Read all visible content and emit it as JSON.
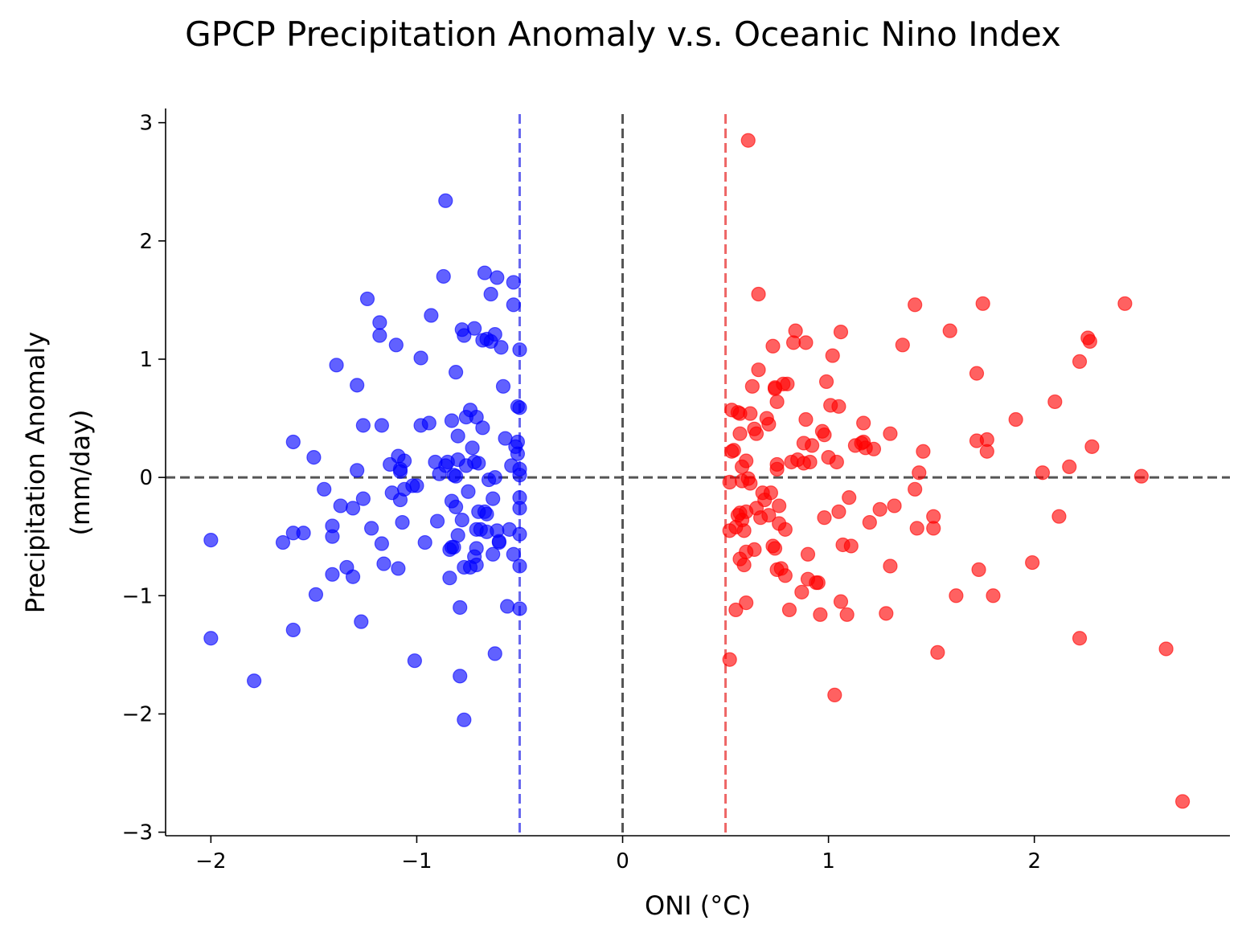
{
  "chart_data": {
    "type": "scatter",
    "title": "GPCP Precipitation Anomaly v.s. Oceanic Nino Index",
    "xlabel": "ONI (°C)",
    "ylabel_lines": [
      "Precipitation Anomaly",
      "(mm/day)"
    ],
    "xlim": [
      -2.22,
      2.95
    ],
    "ylim": [
      -3.03,
      3.12
    ],
    "xticks": [
      -2,
      -1,
      0,
      1,
      2
    ],
    "yticks": [
      -3,
      -2,
      -1,
      0,
      1,
      2,
      3
    ],
    "grid": false,
    "reference_lines": [
      {
        "orientation": "vertical",
        "value": -0.5,
        "color": "#6666ee",
        "style": "dashed"
      },
      {
        "orientation": "vertical",
        "value": 0,
        "color": "#555555",
        "style": "dashed"
      },
      {
        "orientation": "vertical",
        "value": 0.5,
        "color": "#ee6666",
        "style": "dashed"
      },
      {
        "orientation": "horizontal",
        "value": 0,
        "color": "#555555",
        "style": "dashed"
      }
    ],
    "series": [
      {
        "color": "#0000ff",
        "points": [
          [
            -2.0,
            -0.53
          ],
          [
            -2.0,
            -1.36
          ],
          [
            -1.79,
            -1.72
          ],
          [
            -1.65,
            -0.55
          ],
          [
            -1.6,
            0.3
          ],
          [
            -1.6,
            -0.47
          ],
          [
            -1.6,
            -1.29
          ],
          [
            -1.55,
            -0.47
          ],
          [
            -1.5,
            0.17
          ],
          [
            -1.49,
            -0.99
          ],
          [
            -1.45,
            -0.1
          ],
          [
            -1.41,
            -0.41
          ],
          [
            -1.41,
            -0.5
          ],
          [
            -1.41,
            -0.82
          ],
          [
            -1.39,
            0.95
          ],
          [
            -1.37,
            -0.24
          ],
          [
            -1.34,
            -0.76
          ],
          [
            -1.31,
            -0.26
          ],
          [
            -1.31,
            -0.84
          ],
          [
            -1.29,
            0.06
          ],
          [
            -1.29,
            0.78
          ],
          [
            -1.27,
            -1.22
          ],
          [
            -1.26,
            0.44
          ],
          [
            -1.26,
            -0.18
          ],
          [
            -1.24,
            1.51
          ],
          [
            -1.22,
            -0.43
          ],
          [
            -1.18,
            1.31
          ],
          [
            -1.18,
            1.2
          ],
          [
            -1.17,
            0.44
          ],
          [
            -1.17,
            -0.56
          ],
          [
            -1.16,
            -0.73
          ],
          [
            -1.13,
            0.11
          ],
          [
            -1.12,
            -0.13
          ],
          [
            -1.1,
            1.12
          ],
          [
            -1.09,
            0.18
          ],
          [
            -1.09,
            -0.77
          ],
          [
            -1.08,
            0.05
          ],
          [
            -1.08,
            -0.19
          ],
          [
            -1.08,
            0.07
          ],
          [
            -1.07,
            -0.38
          ],
          [
            -1.06,
            -0.1
          ],
          [
            -1.06,
            0.14
          ],
          [
            -1.02,
            -0.07
          ],
          [
            -1.01,
            -1.55
          ],
          [
            -1.0,
            -0.07
          ],
          [
            -0.98,
            0.44
          ],
          [
            -0.98,
            1.01
          ],
          [
            -0.96,
            -0.55
          ],
          [
            -0.94,
            0.46
          ],
          [
            -0.93,
            1.37
          ],
          [
            -0.91,
            0.13
          ],
          [
            -0.9,
            -0.37
          ],
          [
            -0.89,
            0.03
          ],
          [
            -0.87,
            1.7
          ],
          [
            -0.86,
            2.34
          ],
          [
            -0.86,
            0.1
          ],
          [
            -0.85,
            0.13
          ],
          [
            -0.84,
            -0.85
          ],
          [
            -0.84,
            -0.61
          ],
          [
            -0.83,
            0.48
          ],
          [
            -0.83,
            -0.59
          ],
          [
            -0.83,
            -0.2
          ],
          [
            -0.82,
            -0.59
          ],
          [
            -0.82,
            0.02
          ],
          [
            -0.81,
            0.89
          ],
          [
            -0.81,
            0.01
          ],
          [
            -0.81,
            -0.25
          ],
          [
            -0.8,
            0.35
          ],
          [
            -0.8,
            0.15
          ],
          [
            -0.8,
            -0.49
          ],
          [
            -0.79,
            -1.1
          ],
          [
            -0.79,
            -1.68
          ],
          [
            -0.78,
            1.25
          ],
          [
            -0.78,
            -0.36
          ],
          [
            -0.77,
            1.2
          ],
          [
            -0.77,
            -2.05
          ],
          [
            -0.77,
            -0.76
          ],
          [
            -0.76,
            0.51
          ],
          [
            -0.76,
            0.1
          ],
          [
            -0.75,
            -0.12
          ],
          [
            -0.74,
            -0.76
          ],
          [
            -0.74,
            0.57
          ],
          [
            -0.73,
            0.25
          ],
          [
            -0.72,
            1.26
          ],
          [
            -0.72,
            -0.67
          ],
          [
            -0.72,
            0.13
          ],
          [
            -0.71,
            0.51
          ],
          [
            -0.71,
            -0.44
          ],
          [
            -0.71,
            -0.6
          ],
          [
            -0.71,
            -0.74
          ],
          [
            -0.7,
            0.12
          ],
          [
            -0.7,
            -0.29
          ],
          [
            -0.69,
            -0.44
          ],
          [
            -0.68,
            0.42
          ],
          [
            -0.68,
            1.16
          ],
          [
            -0.67,
            -0.29
          ],
          [
            -0.67,
            1.73
          ],
          [
            -0.66,
            -0.31
          ],
          [
            -0.66,
            -0.46
          ],
          [
            -0.66,
            1.17
          ],
          [
            -0.65,
            -0.02
          ],
          [
            -0.64,
            1.15
          ],
          [
            -0.64,
            1.55
          ],
          [
            -0.63,
            -0.18
          ],
          [
            -0.63,
            -0.65
          ],
          [
            -0.62,
            0.0
          ],
          [
            -0.62,
            -1.49
          ],
          [
            -0.62,
            1.21
          ],
          [
            -0.61,
            -0.45
          ],
          [
            -0.61,
            1.69
          ],
          [
            -0.6,
            -0.54
          ],
          [
            -0.6,
            -0.55
          ],
          [
            -0.59,
            1.1
          ],
          [
            -0.58,
            0.77
          ],
          [
            -0.57,
            0.33
          ],
          [
            -0.56,
            -1.09
          ],
          [
            -0.55,
            -0.44
          ],
          [
            -0.54,
            0.1
          ],
          [
            -0.53,
            1.46
          ],
          [
            -0.53,
            1.65
          ],
          [
            -0.53,
            -0.65
          ],
          [
            -0.52,
            0.26
          ],
          [
            -0.51,
            0.6
          ],
          [
            -0.51,
            0.3
          ],
          [
            -0.51,
            0.2
          ],
          [
            -0.5,
            0.07
          ],
          [
            -0.5,
            -0.75
          ],
          [
            -0.5,
            -0.48
          ],
          [
            -0.5,
            -1.11
          ],
          [
            -0.5,
            1.08
          ],
          [
            -0.5,
            0.59
          ],
          [
            -0.5,
            -0.17
          ],
          [
            -0.5,
            -0.26
          ],
          [
            -0.5,
            0.02
          ]
        ]
      },
      {
        "color": "#ff0000",
        "points": [
          [
            0.52,
            -0.04
          ],
          [
            0.52,
            -1.54
          ],
          [
            0.52,
            -0.45
          ],
          [
            0.53,
            0.57
          ],
          [
            0.53,
            0.22
          ],
          [
            0.54,
            0.23
          ],
          [
            0.55,
            -1.12
          ],
          [
            0.55,
            -0.42
          ],
          [
            0.56,
            -0.32
          ],
          [
            0.56,
            0.55
          ],
          [
            0.57,
            0.37
          ],
          [
            0.57,
            0.54
          ],
          [
            0.57,
            -0.69
          ],
          [
            0.57,
            -0.3
          ],
          [
            0.58,
            -0.36
          ],
          [
            0.58,
            0.09
          ],
          [
            0.58,
            -0.03
          ],
          [
            0.59,
            -0.45
          ],
          [
            0.59,
            -0.74
          ],
          [
            0.6,
            -0.63
          ],
          [
            0.6,
            -0.29
          ],
          [
            0.6,
            -1.06
          ],
          [
            0.6,
            0.14
          ],
          [
            0.61,
            -0.01
          ],
          [
            0.61,
            2.85
          ],
          [
            0.62,
            0.54
          ],
          [
            0.62,
            -0.05
          ],
          [
            0.63,
            0.77
          ],
          [
            0.64,
            -0.61
          ],
          [
            0.64,
            0.41
          ],
          [
            0.65,
            -0.26
          ],
          [
            0.65,
            0.37
          ],
          [
            0.66,
            0.91
          ],
          [
            0.66,
            1.55
          ],
          [
            0.67,
            -0.34
          ],
          [
            0.68,
            -0.13
          ],
          [
            0.69,
            -0.19
          ],
          [
            0.7,
            0.5
          ],
          [
            0.71,
            -0.32
          ],
          [
            0.71,
            0.45
          ],
          [
            0.72,
            -0.13
          ],
          [
            0.73,
            1.11
          ],
          [
            0.73,
            -0.58
          ],
          [
            0.74,
            -0.6
          ],
          [
            0.74,
            0.75
          ],
          [
            0.74,
            0.76
          ],
          [
            0.75,
            -0.78
          ],
          [
            0.75,
            0.64
          ],
          [
            0.75,
            0.11
          ],
          [
            0.75,
            0.07
          ],
          [
            0.76,
            -0.24
          ],
          [
            0.76,
            -0.39
          ],
          [
            0.77,
            -0.77
          ],
          [
            0.78,
            0.79
          ],
          [
            0.79,
            -0.44
          ],
          [
            0.79,
            -0.83
          ],
          [
            0.8,
            0.79
          ],
          [
            0.81,
            -1.12
          ],
          [
            0.82,
            0.13
          ],
          [
            0.83,
            1.14
          ],
          [
            0.84,
            1.24
          ],
          [
            0.85,
            0.15
          ],
          [
            0.87,
            -0.97
          ],
          [
            0.88,
            0.29
          ],
          [
            0.88,
            0.12
          ],
          [
            0.89,
            1.14
          ],
          [
            0.89,
            0.49
          ],
          [
            0.9,
            -0.65
          ],
          [
            0.9,
            -0.86
          ],
          [
            0.91,
            0.13
          ],
          [
            0.92,
            0.27
          ],
          [
            0.94,
            -0.89
          ],
          [
            0.95,
            -0.89
          ],
          [
            0.96,
            -1.16
          ],
          [
            0.97,
            0.39
          ],
          [
            0.98,
            0.36
          ],
          [
            0.98,
            -0.34
          ],
          [
            0.99,
            0.81
          ],
          [
            1.0,
            0.17
          ],
          [
            1.01,
            0.61
          ],
          [
            1.02,
            1.03
          ],
          [
            1.03,
            -1.84
          ],
          [
            1.04,
            0.13
          ],
          [
            1.05,
            -0.29
          ],
          [
            1.05,
            0.6
          ],
          [
            1.06,
            1.23
          ],
          [
            1.07,
            -0.57
          ],
          [
            1.06,
            -1.05
          ],
          [
            1.09,
            -1.16
          ],
          [
            1.1,
            -0.17
          ],
          [
            1.11,
            -0.58
          ],
          [
            1.13,
            0.27
          ],
          [
            1.16,
            0.29
          ],
          [
            1.17,
            0.46
          ],
          [
            1.17,
            0.3
          ],
          [
            1.18,
            0.25
          ],
          [
            1.2,
            -0.38
          ],
          [
            1.22,
            0.24
          ],
          [
            1.25,
            -0.27
          ],
          [
            1.28,
            -1.15
          ],
          [
            1.3,
            0.37
          ],
          [
            1.3,
            -0.75
          ],
          [
            1.32,
            -0.24
          ],
          [
            1.36,
            1.12
          ],
          [
            1.42,
            1.46
          ],
          [
            1.42,
            -0.1
          ],
          [
            1.43,
            -0.43
          ],
          [
            1.44,
            0.04
          ],
          [
            1.46,
            0.22
          ],
          [
            1.51,
            -0.33
          ],
          [
            1.51,
            -0.43
          ],
          [
            1.53,
            -1.48
          ],
          [
            1.59,
            1.24
          ],
          [
            1.62,
            -1.0
          ],
          [
            1.72,
            0.88
          ],
          [
            1.72,
            0.31
          ],
          [
            1.73,
            -0.78
          ],
          [
            1.75,
            1.47
          ],
          [
            1.77,
            0.32
          ],
          [
            1.77,
            0.22
          ],
          [
            1.8,
            -1.0
          ],
          [
            1.91,
            0.49
          ],
          [
            1.99,
            -0.72
          ],
          [
            2.04,
            0.04
          ],
          [
            2.1,
            0.64
          ],
          [
            2.12,
            -0.33
          ],
          [
            2.17,
            0.09
          ],
          [
            2.22,
            0.98
          ],
          [
            2.22,
            -1.36
          ],
          [
            2.26,
            1.18
          ],
          [
            2.27,
            1.15
          ],
          [
            2.28,
            0.26
          ],
          [
            2.44,
            1.47
          ],
          [
            2.52,
            0.01
          ],
          [
            2.64,
            -1.45
          ],
          [
            2.72,
            -2.74
          ]
        ]
      }
    ]
  }
}
